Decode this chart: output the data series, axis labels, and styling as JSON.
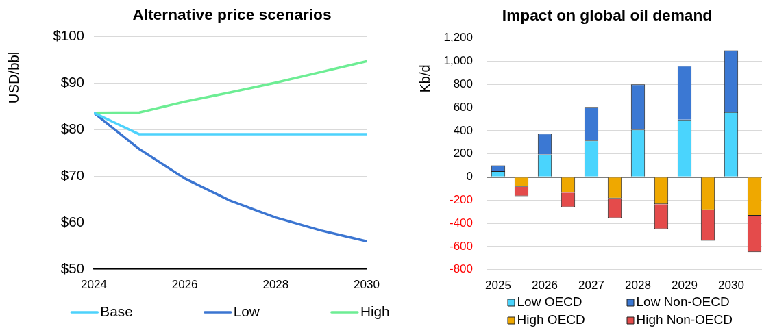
{
  "chart_data": [
    {
      "type": "line",
      "title": "Alternative price scenarios",
      "ylabel": "USD/bbl",
      "x": [
        2024,
        2025,
        2026,
        2027,
        2028,
        2029,
        2030
      ],
      "xlim": [
        2024,
        2030
      ],
      "xticks": [
        2024,
        2026,
        2028,
        2030
      ],
      "ylim": [
        50,
        100
      ],
      "yticks": [
        {
          "value": 50,
          "label": "$50"
        },
        {
          "value": 60,
          "label": "$60"
        },
        {
          "value": 70,
          "label": "$70"
        },
        {
          "value": 80,
          "label": "$80"
        },
        {
          "value": 90,
          "label": "$90"
        },
        {
          "value": 100,
          "label": "$100"
        }
      ],
      "grid": "y",
      "legend": "bottom",
      "marker": "none",
      "line_style": "solid",
      "series": [
        {
          "name": "Base",
          "color": "#4dd2fc",
          "values": [
            83.6,
            79,
            79,
            79,
            79,
            79,
            79
          ]
        },
        {
          "name": "Low",
          "color": "#3b75d1",
          "values": [
            83.6,
            75.8,
            69.5,
            64.7,
            61.1,
            58.3,
            56.0
          ]
        },
        {
          "name": "High",
          "color": "#6ded94",
          "values": [
            83.6,
            83.7,
            86.0,
            88.0,
            90.1,
            92.4,
            94.7
          ]
        }
      ]
    },
    {
      "type": "bar",
      "stacked": true,
      "title": "Impact on global oil demand",
      "ylabel": "Kb/d",
      "categories": [
        "2025",
        null,
        "2026",
        null,
        "2027",
        null,
        "2028",
        null,
        "2029",
        null,
        "2030",
        null
      ],
      "ylim": [
        -800,
        1200
      ],
      "yticks": [
        -800,
        -600,
        -400,
        -200,
        0,
        200,
        400,
        600,
        800,
        {
          "value": 1000,
          "label": "1,000"
        },
        {
          "value": 1200,
          "label": "1,200"
        }
      ],
      "grid": "y",
      "legend": "bottom",
      "series": [
        {
          "name": "Low OECD",
          "color": "#4ad4fd",
          "values": [
            50,
            null,
            195,
            null,
            315,
            null,
            410,
            null,
            495,
            null,
            560,
            null
          ]
        },
        {
          "name": "Low Non-OECD",
          "color": "#3b78d3",
          "values": [
            50,
            null,
            180,
            null,
            290,
            null,
            390,
            null,
            465,
            null,
            535,
            null
          ]
        },
        {
          "name": "High OECD",
          "color": "#efa800",
          "values": [
            null,
            -85,
            null,
            -135,
            null,
            -185,
            null,
            -235,
            null,
            -285,
            null,
            -335
          ]
        },
        {
          "name": "High Non-OECD",
          "color": "#e44b4b",
          "values": [
            null,
            -80,
            null,
            -125,
            null,
            -170,
            null,
            -215,
            null,
            -265,
            null,
            -315
          ]
        }
      ]
    }
  ]
}
